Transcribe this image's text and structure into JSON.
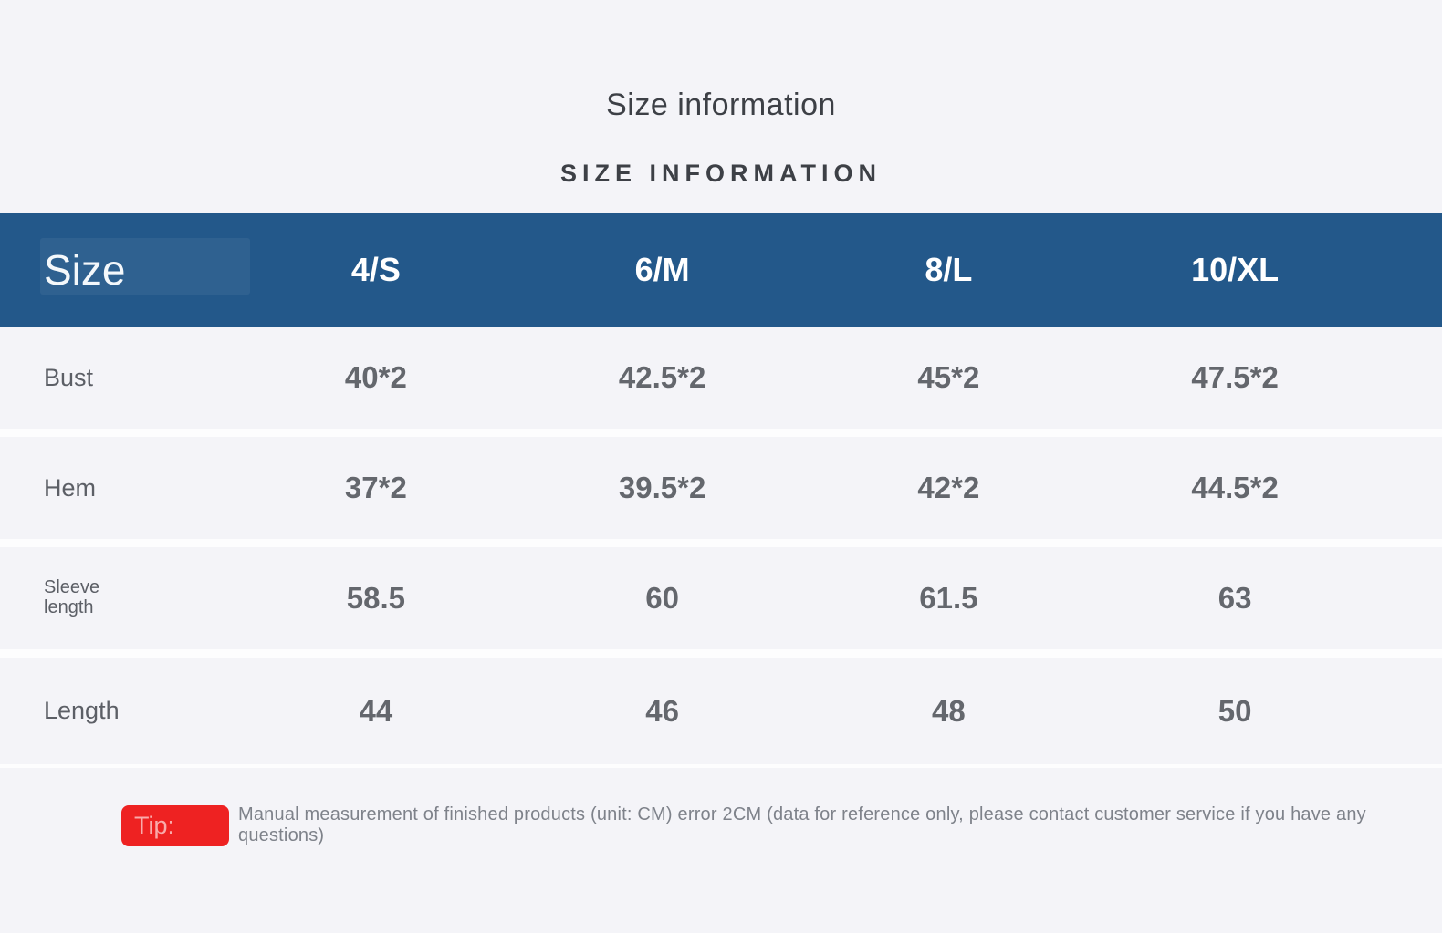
{
  "page": {
    "title": "Size information",
    "subtitle": "SIZE INFORMATION"
  },
  "table": {
    "header": {
      "label": "Size",
      "columns": [
        "4/S",
        "6/M",
        "8/L",
        "10/XL"
      ]
    },
    "rows": [
      {
        "label": "Bust",
        "values": [
          "40*2",
          "42.5*2",
          "45*2",
          "47.5*2"
        ]
      },
      {
        "label": "Hem",
        "values": [
          "37*2",
          "39.5*2",
          "42*2",
          "44.5*2"
        ]
      },
      {
        "label": "Sleeve length",
        "values": [
          "58.5",
          "60",
          "61.5",
          "63"
        ]
      },
      {
        "label": "Length",
        "values": [
          "44",
          "46",
          "48",
          "50"
        ]
      }
    ],
    "unit_note": "CM"
  },
  "tip": {
    "badge_label": "Tip:",
    "text": "Manual measurement of finished products (unit: CM) error 2CM (data for reference only, please contact customer service if you have any questions)"
  },
  "colors": {
    "header_bg": "#23588a",
    "badge_bg": "#ee2222",
    "page_bg": "#f4f4f8",
    "row_gap": "#fdfdfe"
  }
}
